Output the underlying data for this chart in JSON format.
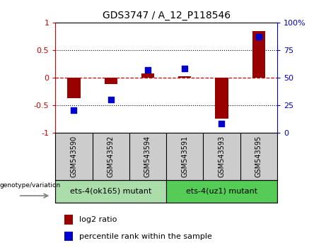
{
  "title": "GDS3747 / A_12_P118546",
  "samples": [
    "GSM543590",
    "GSM543592",
    "GSM543594",
    "GSM543591",
    "GSM543593",
    "GSM543595"
  ],
  "log2_ratio": [
    -0.38,
    -0.12,
    0.07,
    0.02,
    -0.75,
    0.85
  ],
  "percentile_rank": [
    20,
    30,
    57,
    58,
    8,
    87
  ],
  "bar_color": "#990000",
  "dot_color": "#0000cc",
  "ylim_left": [
    -1,
    1
  ],
  "ylim_right": [
    0,
    100
  ],
  "yticks_left": [
    -1,
    -0.5,
    0,
    0.5,
    1
  ],
  "ytick_labels_left": [
    "-1",
    "-0.5",
    "0",
    "0.5",
    "1"
  ],
  "yticks_right": [
    0,
    25,
    50,
    75,
    100
  ],
  "ytick_labels_right": [
    "0",
    "25",
    "50",
    "75",
    "100%"
  ],
  "group1_label": "ets-4(ok165) mutant",
  "group2_label": "ets-4(uz1) mutant",
  "group1_color": "#aaddaa",
  "group2_color": "#55cc55",
  "genotype_label": "genotype/variation",
  "legend_log2": "log2 ratio",
  "legend_pct": "percentile rank within the sample",
  "bar_width": 0.35,
  "dot_size": 40,
  "background_color": "#ffffff",
  "plot_bg_color": "#ffffff",
  "zero_line_color": "#cc0000",
  "axis_color_left": "#cc0000",
  "axis_color_right": "#0000cc",
  "sample_bg_color": "#cccccc",
  "border_color": "#000000"
}
